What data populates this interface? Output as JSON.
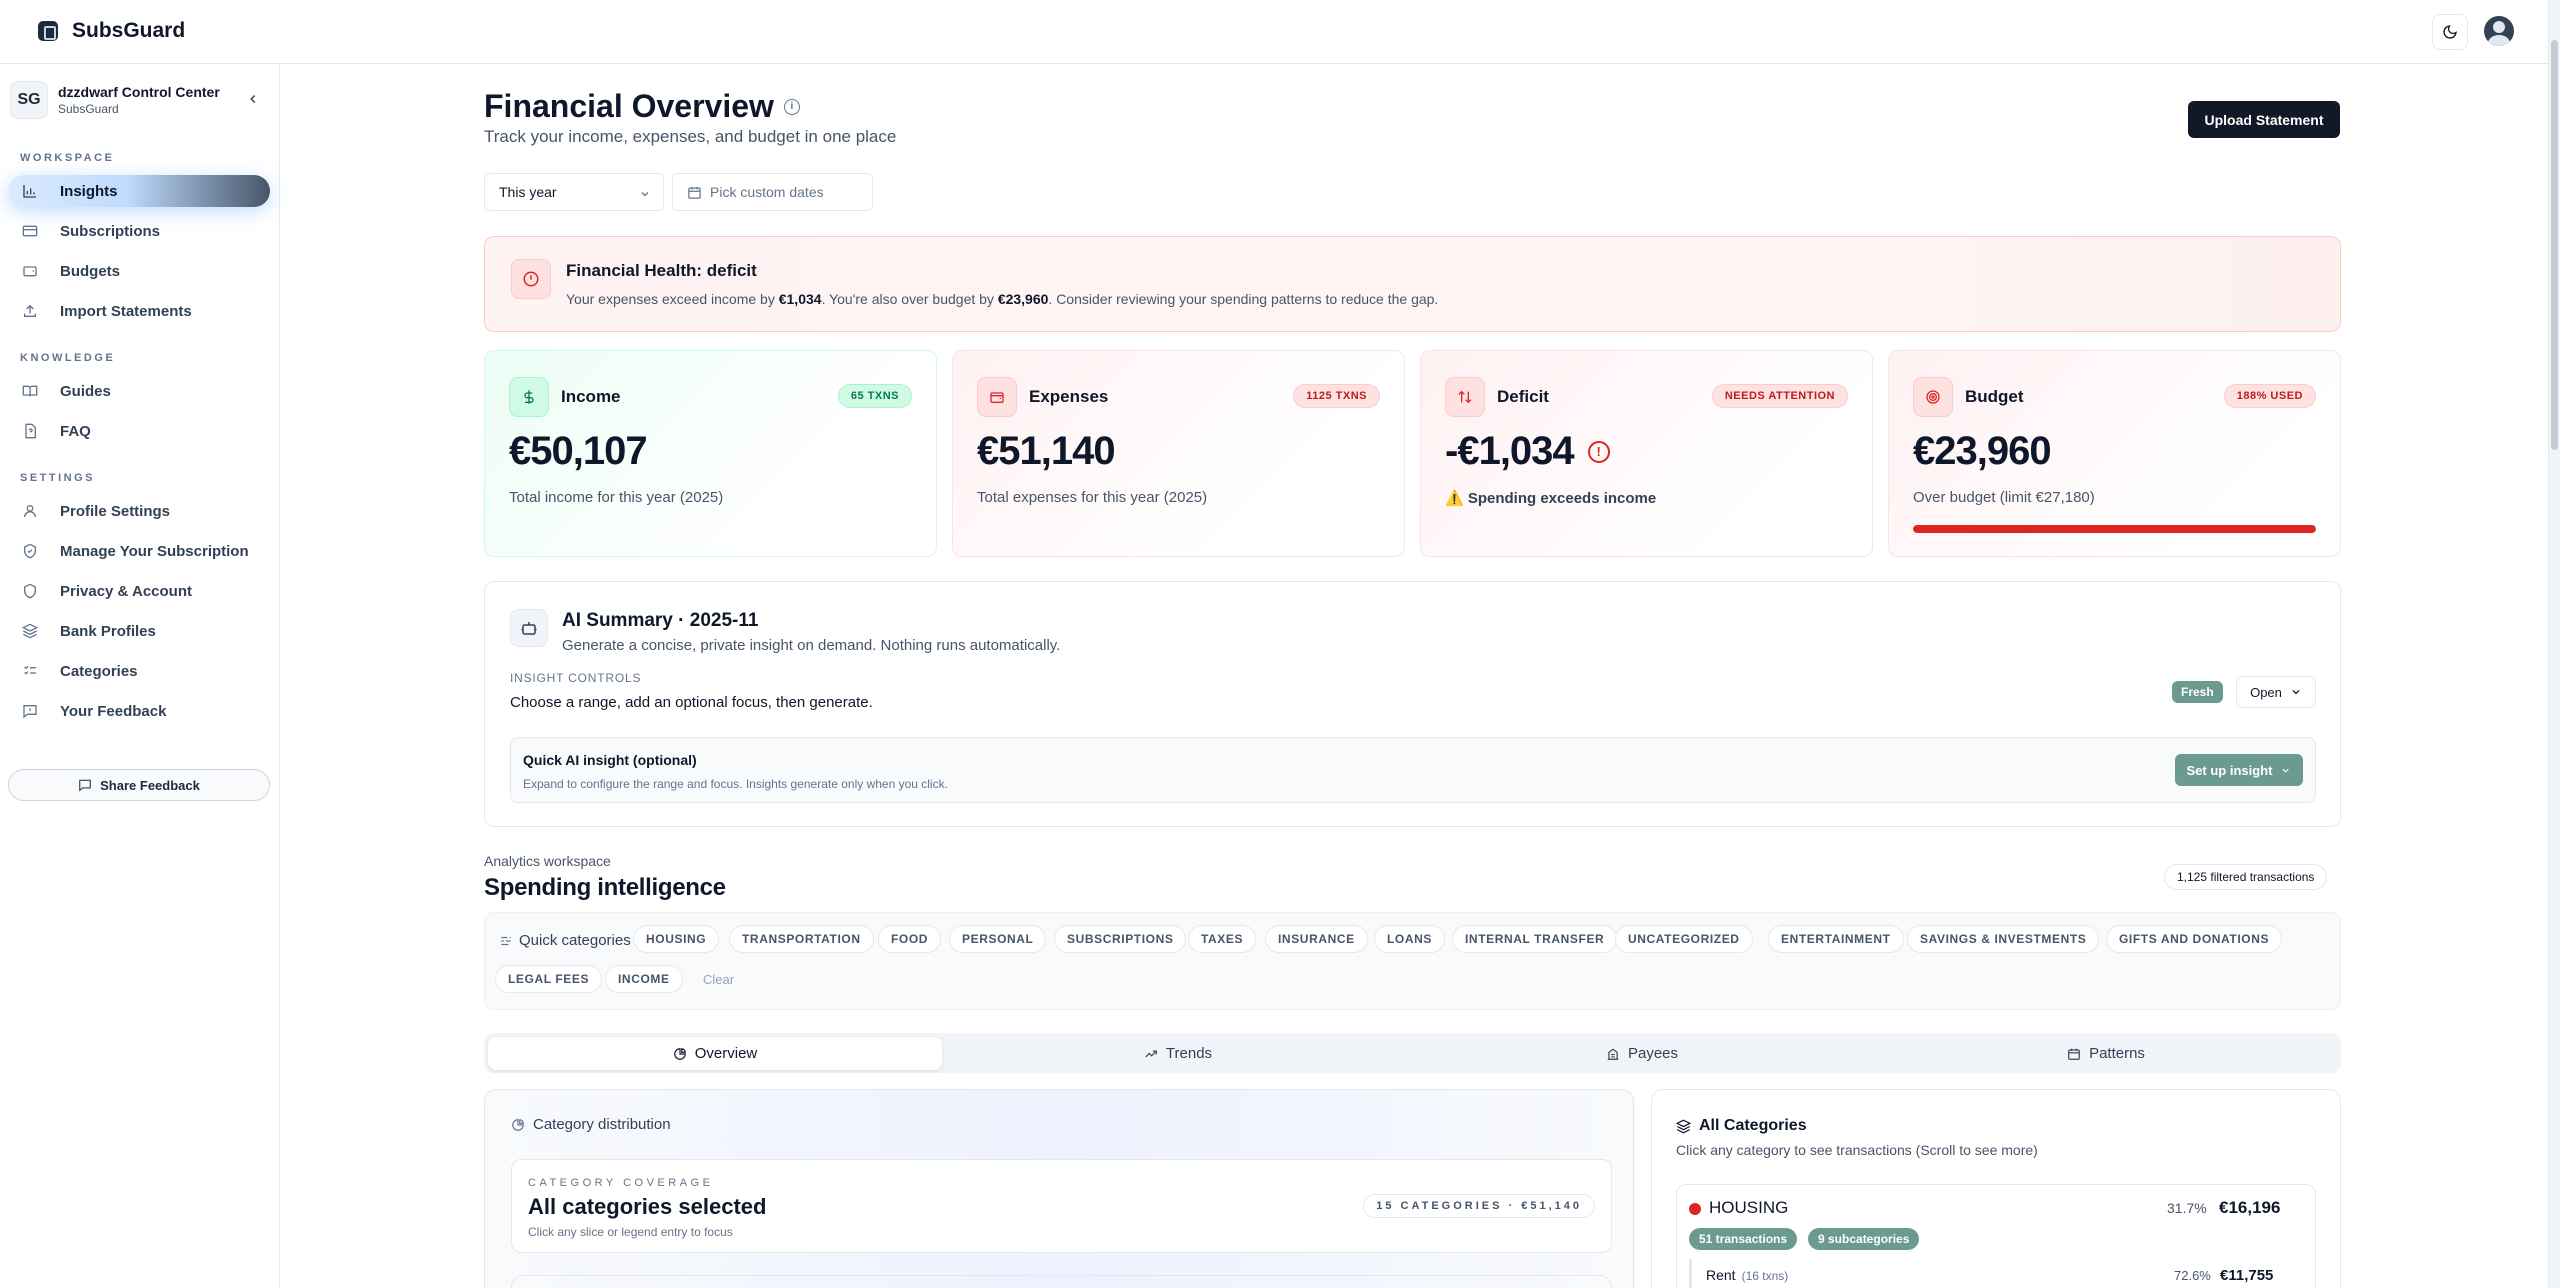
{
  "app": {
    "name": "SubsGuard"
  },
  "workspace": {
    "initials": "SG",
    "title": "dzzdwarf Control Center",
    "subtitle": "SubsGuard"
  },
  "sidebar": {
    "sections": [
      "WORKSPACE",
      "KNOWLEDGE",
      "SETTINGS"
    ],
    "workspace_items": [
      {
        "label": "Insights",
        "icon": "bar-chart-icon",
        "active": true
      },
      {
        "label": "Subscriptions",
        "icon": "credit-card-icon"
      },
      {
        "label": "Budgets",
        "icon": "wallet-icon"
      },
      {
        "label": "Import Statements",
        "icon": "upload-icon"
      }
    ],
    "knowledge_items": [
      {
        "label": "Guides",
        "icon": "book-icon"
      },
      {
        "label": "FAQ",
        "icon": "file-question-icon"
      }
    ],
    "settings_items": [
      {
        "label": "Profile Settings",
        "icon": "user-icon"
      },
      {
        "label": "Manage Your Subscription",
        "icon": "shield-check-icon"
      },
      {
        "label": "Privacy & Account",
        "icon": "shield-icon"
      },
      {
        "label": "Bank Profiles",
        "icon": "layers-icon"
      },
      {
        "label": "Categories",
        "icon": "list-icon"
      },
      {
        "label": "Your Feedback",
        "icon": "message-icon"
      }
    ],
    "share_feedback": "Share Feedback"
  },
  "header": {
    "title": "Financial Overview",
    "subtitle": "Track your income, expenses, and budget in one place",
    "upload": "Upload Statement",
    "period": "This year",
    "custom_dates": "Pick custom dates"
  },
  "health": {
    "title": "Financial Health: deficit",
    "text_a": "Your expenses exceed income by ",
    "amount_a": "€1,034",
    "text_b": ". You're also over budget by ",
    "amount_b": "€23,960",
    "text_c": ". Consider reviewing your spending patterns to reduce the gap."
  },
  "cards": {
    "income": {
      "title": "Income",
      "badge": "65 TXNS",
      "value": "€50,107",
      "caption": "Total income for this year (2025)"
    },
    "expenses": {
      "title": "Expenses",
      "badge": "1125 TXNS",
      "value": "€51,140",
      "caption": "Total expenses for this year (2025)"
    },
    "deficit": {
      "title": "Deficit",
      "badge": "NEEDS ATTENTION",
      "value": "-€1,034",
      "caption": "⚠️ Spending exceeds income"
    },
    "budget": {
      "title": "Budget",
      "badge": "188% USED",
      "value": "€23,960",
      "caption": "Over budget (limit €27,180)",
      "used_fraction": 1.0
    }
  },
  "ai": {
    "title": "AI Summary · 2025-11",
    "subtitle": "Generate a concise, private insight on demand. Nothing runs automatically.",
    "controls_label": "INSIGHT CONTROLS",
    "controls_text": "Choose a range, add an optional focus, then generate.",
    "fresh": "Fresh",
    "open": "Open",
    "quick_title": "Quick AI insight (optional)",
    "quick_sub": "Expand to configure the range and focus. Insights generate only when you click.",
    "setup": "Set up insight"
  },
  "analytics": {
    "label": "Analytics workspace",
    "title": "Spending intelligence",
    "filtered": "1,125 filtered transactions",
    "quick_label": "Quick categories",
    "chips": [
      "HOUSING",
      "TRANSPORTATION",
      "FOOD",
      "PERSONAL",
      "SUBSCRIPTIONS",
      "TAXES",
      "INSURANCE",
      "LOANS",
      "INTERNAL TRANSFER",
      "UNCATEGORIZED",
      "ENTERTAINMENT",
      "SAVINGS & INVESTMENTS",
      "GIFTS AND DONATIONS",
      "LEGAL FEES",
      "INCOME"
    ],
    "clear": "Clear",
    "tabs": [
      "Overview",
      "Trends",
      "Payees",
      "Patterns"
    ]
  },
  "distribution": {
    "title": "Category distribution",
    "coverage_label": "CATEGORY COVERAGE",
    "coverage_title": "All categories selected",
    "coverage_sub": "Click any slice or legend entry to focus",
    "coverage_badge": "15 CATEGORIES · €51,140"
  },
  "all_categories": {
    "title": "All Categories",
    "subtitle": "Click any category to see transactions (Scroll to see more)",
    "housing": {
      "name": "HOUSING",
      "pct": "31.7%",
      "amount": "€16,196",
      "txns": "51 transactions",
      "subcats": "9 subcategories",
      "color": "#dc2626"
    },
    "rent": {
      "name": "Rent",
      "txns": "(16 txns)",
      "pct": "72.6%",
      "amount": "€11,755"
    }
  }
}
